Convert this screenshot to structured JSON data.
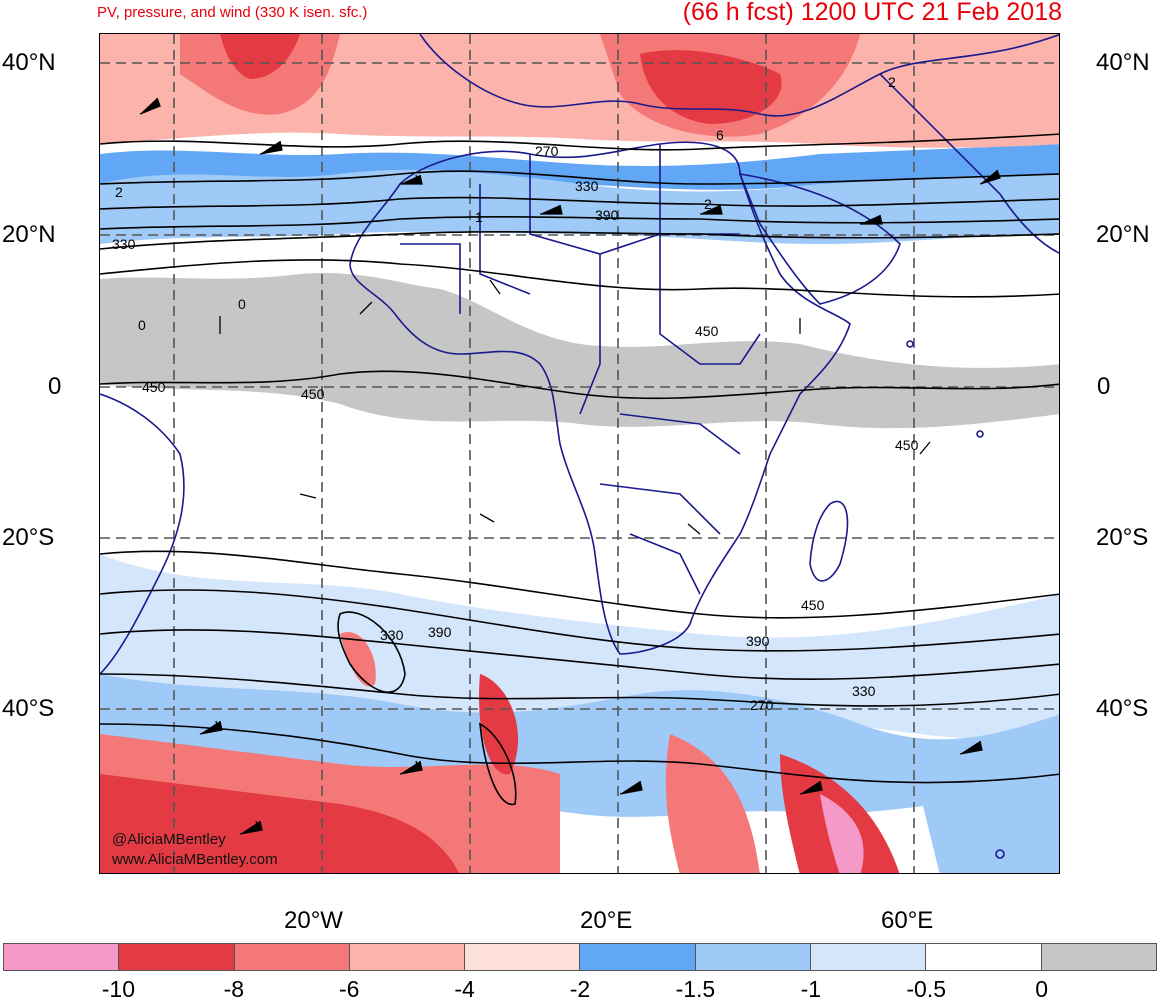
{
  "header": {
    "subtitle": "PV, pressure, and wind (330 K isen. sfc.)",
    "title": "(66 h fcst) 1200 UTC 21 Feb 2018"
  },
  "map": {
    "lat_labels_left": [
      "40°N",
      "20°N",
      "0",
      "20°S",
      "40°S"
    ],
    "lat_labels_right": [
      "40°N",
      "20°N",
      "0",
      "20°S",
      "40°S"
    ],
    "lon_labels": [
      "20°W",
      "20°E",
      "60°E"
    ],
    "contour_labels": [
      "270",
      "330",
      "390",
      "1",
      "2",
      "2",
      "6",
      "2",
      "330",
      "0",
      "0",
      "450",
      "450",
      "450",
      "450",
      "450",
      "330",
      "390",
      "390",
      "270",
      "330"
    ],
    "credit_handle": "@AliciaMBentley",
    "credit_url": "www.AliciaMBentley.com"
  },
  "colorbar": {
    "labels": [
      "-10",
      "-8",
      "-6",
      "-4",
      "-2",
      "-1.5",
      "-1",
      "-0.5",
      "0"
    ],
    "colors": [
      "#f59ac8",
      "#e43a43",
      "#f57878",
      "#fbb3ac",
      "#fde0dc",
      "#62a7f5",
      "#9fc9f7",
      "#d3e6fc",
      "#ffffff",
      "#c6c6c6"
    ]
  },
  "colors": {
    "title": "#e8000b",
    "coastline": "#1a1a8c",
    "contour": "#000000",
    "grid": "#555555"
  }
}
